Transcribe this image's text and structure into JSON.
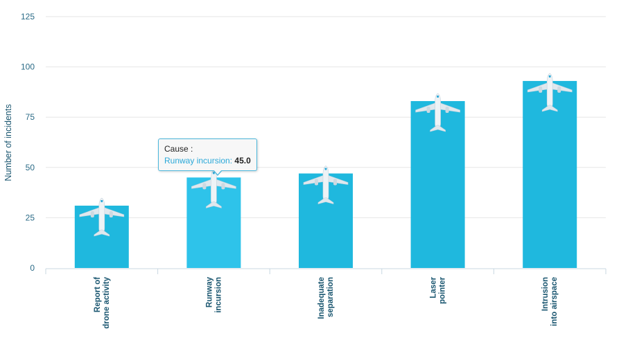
{
  "chart_data": {
    "type": "bar",
    "title": "",
    "xlabel": "",
    "ylabel": "Number of incidents",
    "ylim": [
      0,
      125
    ],
    "yticks": [
      0,
      25,
      50,
      75,
      100,
      125
    ],
    "grid": true,
    "categories": [
      [
        "Report of",
        "drone activity"
      ],
      [
        "Runway",
        "incursion"
      ],
      [
        "Inadequate",
        "separation"
      ],
      [
        "Laser",
        "pointer"
      ],
      [
        "Intrusion",
        "into airspace"
      ]
    ],
    "values": [
      31,
      45,
      47,
      83,
      93
    ],
    "bar_color": "#1fb8de",
    "highlight_color": "#2ec3ea",
    "marker_icon": "airplane-icon"
  },
  "tooltip": {
    "header": "Cause :",
    "series_label": "Runway incursion",
    "separator": ":",
    "value": "45.0",
    "category_index": 1
  }
}
